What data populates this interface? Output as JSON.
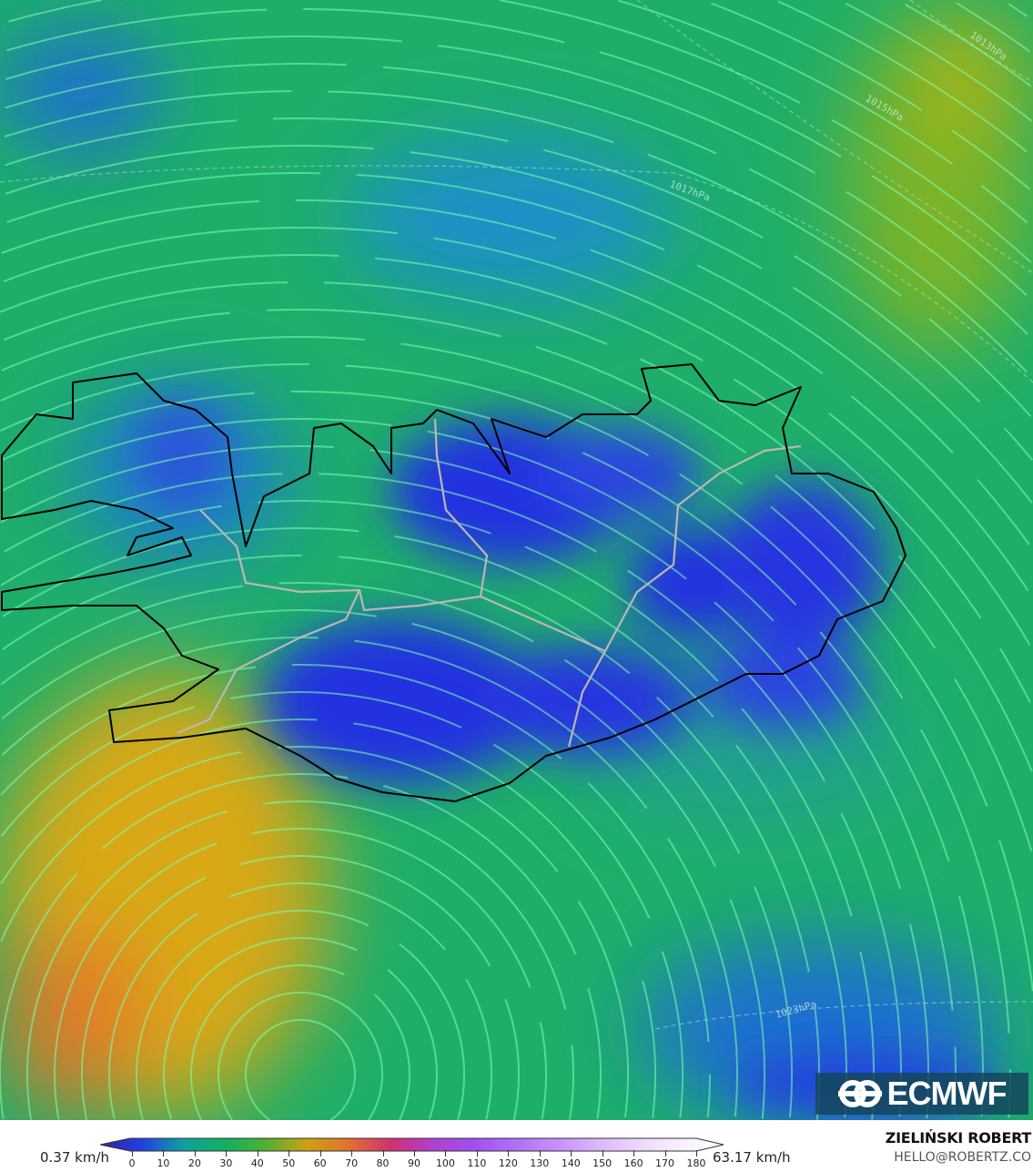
{
  "map": {
    "isobar_labels": [
      "1013hPa",
      "1015hPa",
      "1017hPa",
      "1023hPa"
    ],
    "colors": {
      "calm": "#2233e0",
      "light": "#1a90c0",
      "moderate": "#1fae6a",
      "strong": "#d8a812",
      "streamline": "#7dffb0",
      "coastline": "#000000",
      "roads": "#b8b8b8"
    }
  },
  "logo": {
    "text": "ECMWF",
    "icon": "ecmwf-logo-icon"
  },
  "legend": {
    "min_label": "0.37 km/h",
    "max_label": "63.17 km/h",
    "ticks": [
      "0",
      "10",
      "20",
      "30",
      "40",
      "50",
      "60",
      "70",
      "80",
      "90",
      "100",
      "110",
      "120",
      "130",
      "140",
      "150",
      "160",
      "170",
      "180"
    ],
    "unit": "km/h",
    "colorscale": [
      "#3a1fa0",
      "#2040e0",
      "#10a0a0",
      "#10b060",
      "#50b030",
      "#d0a010",
      "#e07030",
      "#d03070",
      "#b040d0",
      "#a050f0",
      "#b070f8",
      "#c890fa",
      "#dcb8fc",
      "#eed8fe",
      "#f8f0ff",
      "#ffffff"
    ]
  },
  "credit": {
    "name": "ZIELIŃSKI ROBERT",
    "email": "HELLO@ROBERTZ.CO"
  }
}
